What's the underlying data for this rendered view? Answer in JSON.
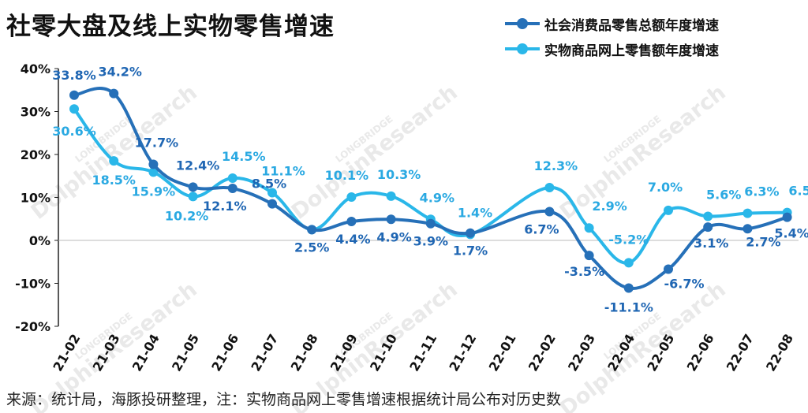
{
  "title": "社零大盘及线上实物零售增速",
  "footer": "来源：统计局，海豚投研整理，注：实物商品网上零售增速根据统计局公布对历史数",
  "watermark": {
    "brand": "LONGBRIDGE",
    "name": "DolphinResearch"
  },
  "colors": {
    "series1": "#2670b8",
    "series2": "#2ab7e9",
    "label1": "#1f66b3",
    "label2": "#2aa9e2",
    "axis": "#222222"
  },
  "chart_data": {
    "type": "line",
    "title": "社零大盘及线上实物零售增速",
    "categories": [
      "21-02",
      "21-03",
      "21-04",
      "21-05",
      "21-06",
      "21-07",
      "21-08",
      "21-09",
      "21-10",
      "21-11",
      "21-12",
      "22-01",
      "22-02",
      "22-03",
      "22-04",
      "22-05",
      "22-06",
      "22-07",
      "22-08"
    ],
    "ylim": [
      -20,
      40
    ],
    "yticks": [
      "40%",
      "30%",
      "20%",
      "10%",
      "0%",
      "-10%",
      "-20%"
    ],
    "ytick_values": [
      40,
      30,
      20,
      10,
      0,
      -10,
      -20
    ],
    "legend_position": "top-right",
    "grid": false,
    "series": [
      {
        "name": "社会消费品零售总额年度增速",
        "values": [
          33.8,
          34.2,
          17.7,
          12.4,
          12.1,
          8.5,
          2.5,
          4.4,
          4.9,
          3.9,
          1.7,
          null,
          6.7,
          -3.5,
          -11.1,
          -6.7,
          3.1,
          2.7,
          5.4
        ],
        "labels": [
          "33.8%",
          "34.2%",
          "17.7%",
          "12.4%",
          "12.1%",
          "8.5%",
          "2.5%",
          "4.4%",
          "4.9%",
          "3.9%",
          "1.7%",
          "",
          "6.7%",
          "-3.5%",
          "-11.1%",
          "-6.7%",
          "3.1%",
          "2.7%",
          "5.4%"
        ]
      },
      {
        "name": "实物商品网上零售额年度增速",
        "values": [
          30.6,
          18.5,
          15.9,
          10.2,
          14.5,
          11.1,
          2.5,
          10.1,
          10.3,
          4.9,
          1.4,
          null,
          12.3,
          2.9,
          -5.2,
          7.0,
          5.6,
          6.3,
          6.5
        ],
        "labels": [
          "30.6%",
          "18.5%",
          "15.9%",
          "10.2%",
          "14.5%",
          "11.1%",
          "",
          "10.1%",
          "10.3%",
          "4.9%",
          "1.4%",
          "",
          "12.3%",
          "2.9%",
          "-5.2%",
          "7.0%",
          "5.6%",
          "6.3%",
          "6.5%"
        ]
      }
    ]
  }
}
